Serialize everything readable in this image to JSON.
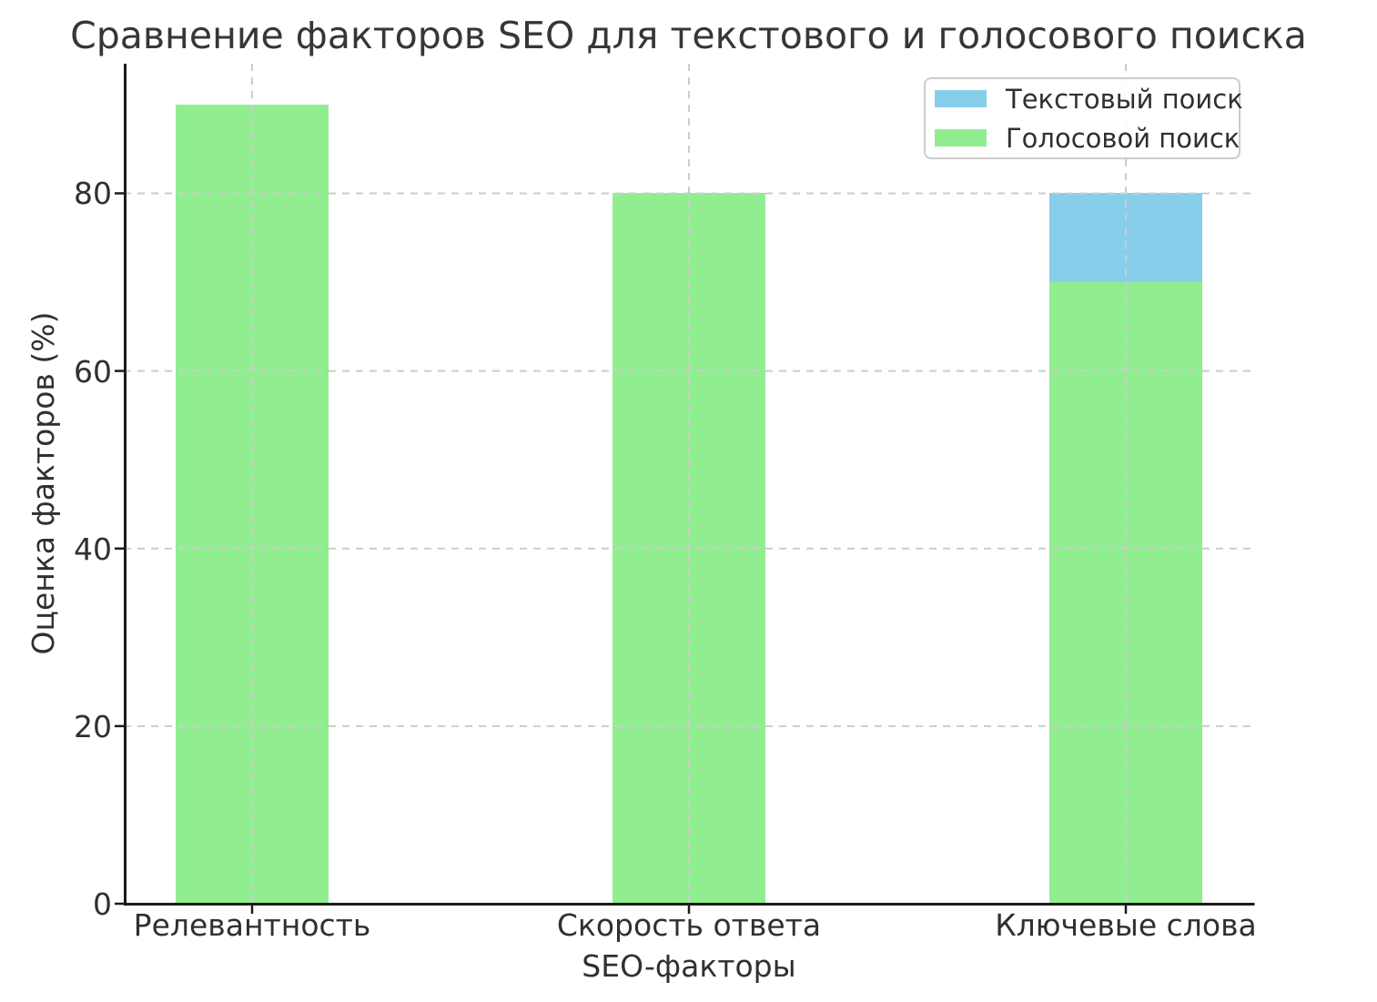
{
  "chart_data": {
    "type": "bar",
    "bar_mode": "overlay",
    "title": "Сравнение факторов SEO для текстового и голосового поиска",
    "xlabel": "SEO-факторы",
    "ylabel": "Оценка факторов (%)",
    "categories": [
      "Релевантность",
      "Скорость ответа",
      "Ключевые слова"
    ],
    "series": [
      {
        "name": "Текстовый поиск",
        "color": "#87CEEB",
        "values": [
          null,
          null,
          80
        ],
        "visibility_note": "drawn behind green series; only the 70-80 segment of 'Ключевые слова' is visible"
      },
      {
        "name": "Голосовой поиск",
        "color": "#90EE90",
        "values": [
          90,
          80,
          70
        ]
      }
    ],
    "ylim": [
      0,
      94.6
    ],
    "yticks": [
      0,
      20,
      40,
      60,
      80
    ],
    "grid": {
      "style": "dashed",
      "color": "#cccccc",
      "drawn_on_top_of_bars": true
    },
    "legend_position": "upper right"
  }
}
